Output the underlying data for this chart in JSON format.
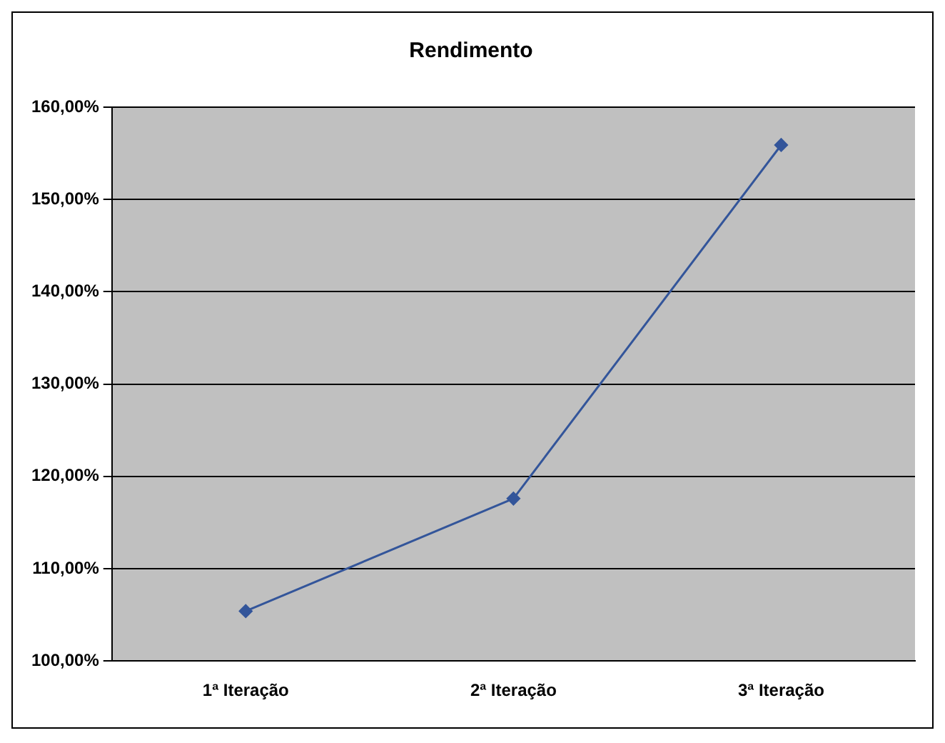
{
  "chart_data": {
    "type": "line",
    "title": "Rendimento",
    "categories": [
      "1ª Iteração",
      "2ª Iteração",
      "3ª Iteração"
    ],
    "series": [
      {
        "color": "#33559a",
        "values": [
          105.4,
          117.6,
          155.9
        ]
      }
    ],
    "ylim": [
      100,
      160
    ],
    "yticks": [
      {
        "value": 100,
        "label": "100,00%"
      },
      {
        "value": 110,
        "label": "110,00%"
      },
      {
        "value": 120,
        "label": "120,00%"
      },
      {
        "value": 130,
        "label": "130,00%"
      },
      {
        "value": 140,
        "label": "140,00%"
      },
      {
        "value": 150,
        "label": "150,00%"
      },
      {
        "value": 160,
        "label": "160,00%"
      }
    ],
    "grid": "y",
    "legend": false,
    "marker": "diamond",
    "line_style": "solid"
  }
}
